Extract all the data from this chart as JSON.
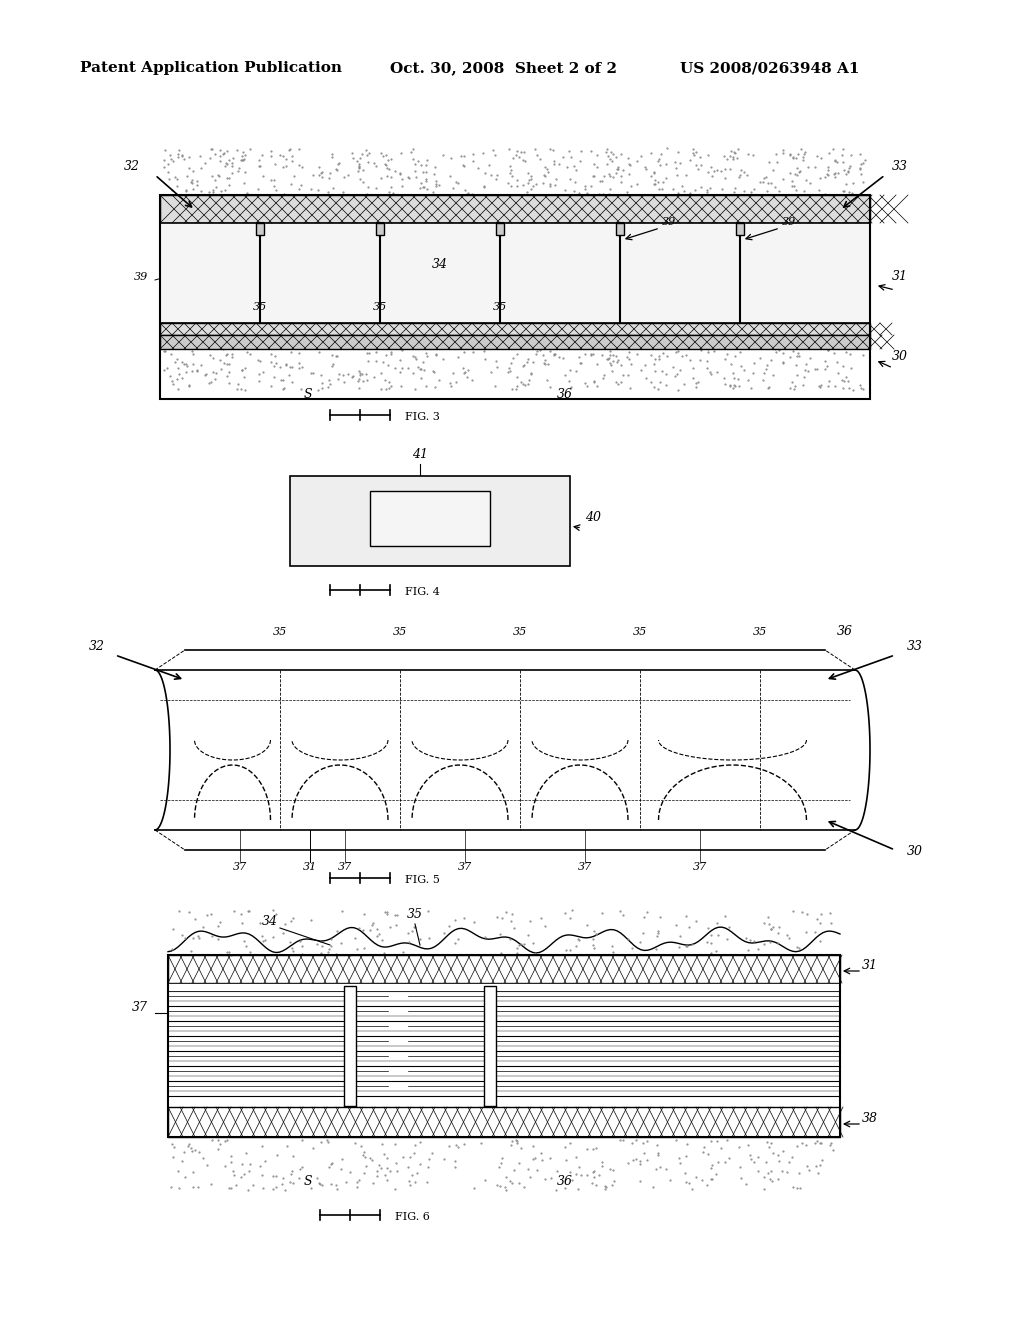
{
  "page_title_left": "Patent Application Publication",
  "page_title_center": "Oct. 30, 2008  Sheet 2 of 2",
  "page_title_right": "US 2008/0263948 A1",
  "background_color": "#ffffff",
  "line_color": "#000000",
  "hatch_color": "#555555",
  "fig3_label": "FIG. 3",
  "fig4_label": "FIG. 4",
  "fig5_label": "FIG. 5",
  "fig6_label": "FIG. 6"
}
